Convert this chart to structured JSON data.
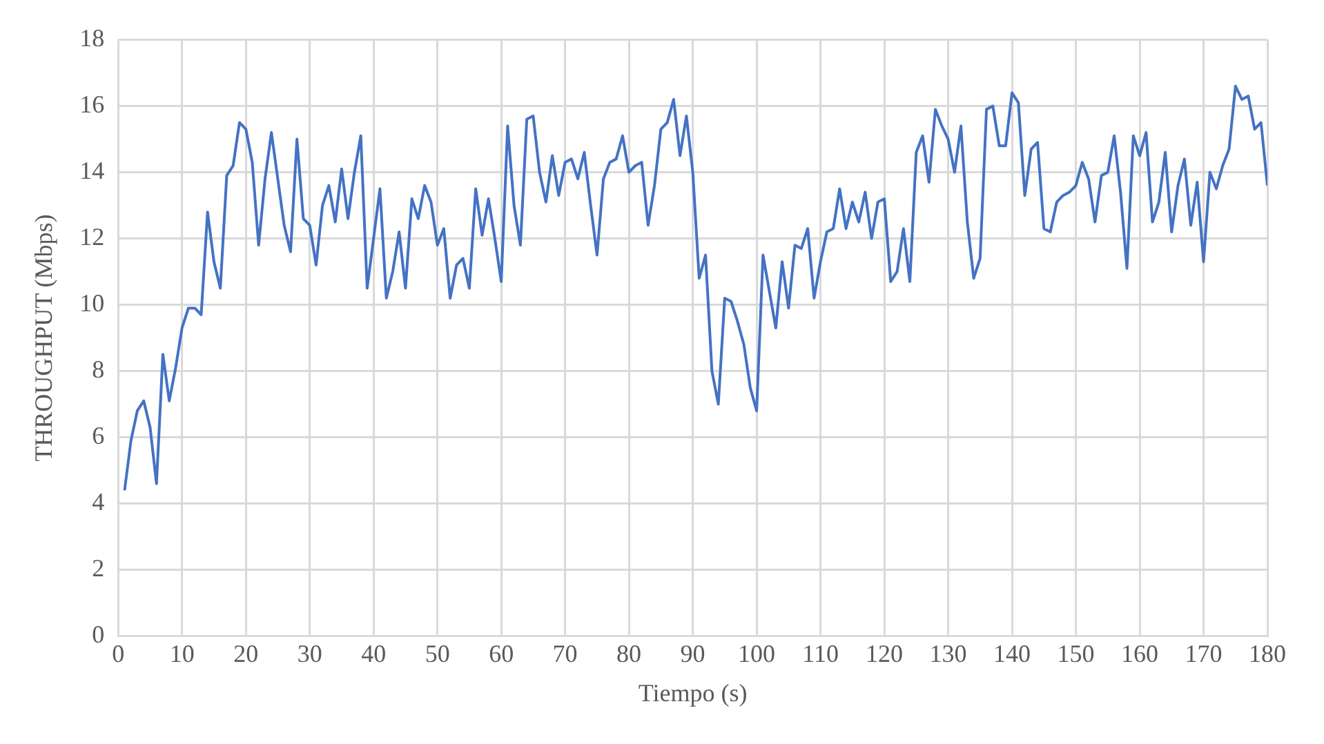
{
  "chart_data": {
    "type": "line",
    "xlabel": "Tiempo (s)",
    "ylabel": "THROUGHPUT (Mbps)",
    "x": [
      1,
      2,
      3,
      4,
      5,
      6,
      7,
      8,
      9,
      10,
      11,
      12,
      13,
      14,
      15,
      16,
      17,
      18,
      19,
      20,
      21,
      22,
      23,
      24,
      25,
      26,
      27,
      28,
      29,
      30,
      31,
      32,
      33,
      34,
      35,
      36,
      37,
      38,
      39,
      40,
      41,
      42,
      43,
      44,
      45,
      46,
      47,
      48,
      49,
      50,
      51,
      52,
      53,
      54,
      55,
      56,
      57,
      58,
      59,
      60,
      61,
      62,
      63,
      64,
      65,
      66,
      67,
      68,
      69,
      70,
      71,
      72,
      73,
      74,
      75,
      76,
      77,
      78,
      79,
      80,
      81,
      82,
      83,
      84,
      85,
      86,
      87,
      88,
      89,
      90,
      91,
      92,
      93,
      94,
      95,
      96,
      97,
      98,
      99,
      100,
      101,
      102,
      103,
      104,
      105,
      106,
      107,
      108,
      109,
      110,
      111,
      112,
      113,
      114,
      115,
      116,
      117,
      118,
      119,
      120,
      121,
      122,
      123,
      124,
      125,
      126,
      127,
      128,
      129,
      130,
      131,
      132,
      133,
      134,
      135,
      136,
      137,
      138,
      139,
      140,
      141,
      142,
      143,
      144,
      145,
      146,
      147,
      148,
      149,
      150,
      151,
      152,
      153,
      154,
      155,
      156,
      157,
      158,
      159,
      160,
      161,
      162,
      163,
      164,
      165,
      166,
      167,
      168,
      169,
      170,
      171,
      172,
      173,
      174,
      175,
      176,
      177,
      178,
      179,
      180
    ],
    "series": [
      {
        "color": "#4472c4",
        "values": [
          4.4,
          5.9,
          6.8,
          7.1,
          6.3,
          4.6,
          8.5,
          7.1,
          8.1,
          9.3,
          9.9,
          9.9,
          9.7,
          12.8,
          11.3,
          10.5,
          13.9,
          14.2,
          15.5,
          15.3,
          14.3,
          11.8,
          13.8,
          15.2,
          13.8,
          12.4,
          11.6,
          15.0,
          12.6,
          12.4,
          11.2,
          13.0,
          13.6,
          12.5,
          14.1,
          12.6,
          14.0,
          15.1,
          10.5,
          12.0,
          13.5,
          10.2,
          11.0,
          12.2,
          10.5,
          13.2,
          12.6,
          13.6,
          13.1,
          11.8,
          12.3,
          10.2,
          11.2,
          11.4,
          10.5,
          13.5,
          12.1,
          13.2,
          12.0,
          10.7,
          15.4,
          13.0,
          11.8,
          15.6,
          15.7,
          14.0,
          13.1,
          14.5,
          13.3,
          14.3,
          14.4,
          13.8,
          14.6,
          13.0,
          11.5,
          13.8,
          14.3,
          14.4,
          15.1,
          14.0,
          14.2,
          14.3,
          12.4,
          13.6,
          15.3,
          15.5,
          16.2,
          14.5,
          15.7,
          14.0,
          10.8,
          11.5,
          8.0,
          7.0,
          10.2,
          10.1,
          9.5,
          8.8,
          7.5,
          6.8,
          11.5,
          10.4,
          9.3,
          11.3,
          9.9,
          11.8,
          11.7,
          12.3,
          10.2,
          11.3,
          12.2,
          12.3,
          13.5,
          12.3,
          13.1,
          12.5,
          13.4,
          12.0,
          13.1,
          13.2,
          10.7,
          11.0,
          12.3,
          10.7,
          14.6,
          15.1,
          13.7,
          15.9,
          15.4,
          15.0,
          14.0,
          15.4,
          12.5,
          10.8,
          11.4,
          15.9,
          16.0,
          14.8,
          14.8,
          16.4,
          16.1,
          13.3,
          14.7,
          14.9,
          12.3,
          12.2,
          13.1,
          13.3,
          13.4,
          13.6,
          14.3,
          13.8,
          12.5,
          13.9,
          14.0,
          15.1,
          13.4,
          11.1,
          15.1,
          14.5,
          15.2,
          12.5,
          13.1,
          14.6,
          12.2,
          13.6,
          14.4,
          12.4,
          13.7,
          11.3,
          14.0,
          13.5,
          14.2,
          14.7,
          16.6,
          16.2,
          16.3,
          15.3,
          15.5,
          13.6
        ]
      }
    ],
    "xlim": [
      0,
      180
    ],
    "xticks": [
      0,
      10,
      20,
      30,
      40,
      50,
      60,
      70,
      80,
      90,
      100,
      110,
      120,
      130,
      140,
      150,
      160,
      170,
      180
    ],
    "ylim": [
      0,
      18
    ],
    "yticks": [
      0,
      2,
      4,
      6,
      8,
      10,
      12,
      14,
      16,
      18
    ],
    "grid": true,
    "legend": false,
    "marker": "none",
    "line_style": "solid"
  }
}
